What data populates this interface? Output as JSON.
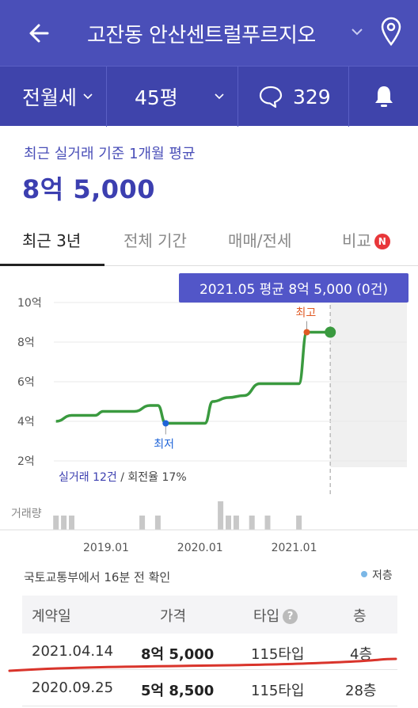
{
  "header": {
    "title": "고잔동 안산센트럴푸르지오"
  },
  "filters": {
    "deal_type": "전월세",
    "size": "45평",
    "comment_count": "329"
  },
  "summary": {
    "label": "최근 실거래 기준 1개월 평균",
    "value": "8억 5,000"
  },
  "tabs": [
    {
      "label": "최근 3년",
      "active": true
    },
    {
      "label": "전체 기간",
      "active": false
    },
    {
      "label": "매매/전세",
      "active": false
    },
    {
      "label": "비교",
      "active": false,
      "badge": "N"
    }
  ],
  "tooltip": "2021.05 평균 8억 5,000 (0건)",
  "chart_data": {
    "type": "line",
    "y_ticks": [
      "10억",
      "8억",
      "6억",
      "4억",
      "2억"
    ],
    "ylim": [
      2,
      10
    ],
    "x_ticks": [
      "2019.01",
      "2020.01",
      "2021.01"
    ],
    "volume_label": "거래량",
    "low_label": "최저",
    "high_label": "최고",
    "series": [
      {
        "values": [
          [
            "2018.06",
            4.0
          ],
          [
            "2018.08",
            4.3
          ],
          [
            "2018.11",
            4.3
          ],
          [
            "2018.12",
            4.5
          ],
          [
            "2019.04",
            4.5
          ],
          [
            "2019.06",
            4.8
          ],
          [
            "2019.07",
            4.8
          ],
          [
            "2019.08",
            3.9
          ],
          [
            "2020.01",
            3.9
          ],
          [
            "2020.02",
            5.0
          ],
          [
            "2020.04",
            5.2
          ],
          [
            "2020.06",
            5.3
          ],
          [
            "2020.08",
            5.9
          ],
          [
            "2020.12",
            5.9
          ],
          [
            "2021.01",
            5.9
          ],
          [
            "2021.02",
            8.5
          ],
          [
            "2021.05",
            8.5
          ]
        ]
      }
    ],
    "volume_months": [
      "2018.06",
      "2018.07",
      "2018.08",
      "2019.05",
      "2019.07",
      "2020.03",
      "2020.04",
      "2020.05",
      "2020.07",
      "2020.09",
      "2021.01"
    ],
    "volume_values": [
      1,
      1,
      1,
      1,
      1,
      2,
      1,
      1,
      1,
      1,
      1
    ]
  },
  "stats": {
    "trades": "실거래 12건",
    "separator": " / ",
    "turnover": "회전율 17%"
  },
  "source_note": "국토교통부에서 16분 전 확인",
  "legend_low": "저층",
  "table": {
    "headers": [
      "계약일",
      "가격",
      "타입",
      "층"
    ],
    "rows": [
      [
        "2021.04.14",
        "8억 5,000",
        "115타입",
        "4층"
      ],
      [
        "2020.09.25",
        "5억 8,500",
        "115타입",
        "28층"
      ]
    ]
  },
  "colors": {
    "header_bg": "#4a4fb8",
    "accent": "#3c3fb0",
    "line": "#3a9a3f",
    "low_point": "#1f64d8",
    "high_point": "#e05a24",
    "underline_annotation": "#d9342b"
  }
}
